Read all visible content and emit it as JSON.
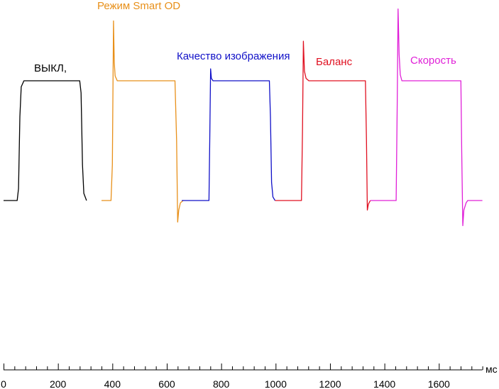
{
  "chart_data": {
    "type": "line",
    "title": "",
    "xlabel": "",
    "ylabel": "",
    "x_unit": "мс",
    "xlim": [
      0,
      1760
    ],
    "x_ticks": [
      0,
      200,
      400,
      600,
      800,
      1000,
      1200,
      1400,
      1600
    ],
    "x_minor_step": 40,
    "y_axis_visible": false,
    "grid": false,
    "series": [
      {
        "name": "ВЫКЛ,",
        "color": "#000000",
        "points": [
          [
            0,
            0
          ],
          [
            50,
            0
          ],
          [
            55,
            0.1
          ],
          [
            60,
            0.7
          ],
          [
            65,
            0.95
          ],
          [
            75,
            1
          ],
          [
            280,
            1
          ],
          [
            285,
            0.9
          ],
          [
            290,
            0.3
          ],
          [
            295,
            0.06
          ],
          [
            305,
            0
          ]
        ]
      },
      {
        "name": "Режим Smart OD",
        "color": "#e8901a",
        "points": [
          [
            360,
            0
          ],
          [
            395,
            0
          ],
          [
            400,
            0.3
          ],
          [
            404,
            1.5
          ],
          [
            407,
            1.15
          ],
          [
            410,
            1.04
          ],
          [
            418,
            1
          ],
          [
            630,
            1
          ],
          [
            636,
            0.5
          ],
          [
            640,
            -0.18
          ],
          [
            644,
            -0.08
          ],
          [
            650,
            -0.02
          ],
          [
            660,
            0
          ]
        ]
      },
      {
        "name": "Качество изображения",
        "color": "#1010c8",
        "points": [
          [
            655,
            0
          ],
          [
            755,
            0
          ],
          [
            758,
            0.5
          ],
          [
            761,
            1.1
          ],
          [
            764,
            1.02
          ],
          [
            770,
            1
          ],
          [
            977,
            1
          ],
          [
            981,
            0.7
          ],
          [
            985,
            0.15
          ],
          [
            990,
            0.03
          ],
          [
            998,
            0
          ]
        ]
      },
      {
        "name": "Баланс",
        "color": "#e01020",
        "points": [
          [
            998,
            0
          ],
          [
            1095,
            0
          ],
          [
            1099,
            0.6
          ],
          [
            1102,
            1.33
          ],
          [
            1106,
            1.08
          ],
          [
            1112,
            1.02
          ],
          [
            1122,
            1
          ],
          [
            1330,
            1
          ],
          [
            1334,
            0.5
          ],
          [
            1337,
            -0.08
          ],
          [
            1341,
            -0.03
          ],
          [
            1348,
            0
          ]
        ]
      },
      {
        "name": "Скорость",
        "color": "#e020d8",
        "points": [
          [
            1348,
            0
          ],
          [
            1443,
            0
          ],
          [
            1447,
            0.8
          ],
          [
            1450,
            1.6
          ],
          [
            1454,
            1.22
          ],
          [
            1458,
            1.05
          ],
          [
            1464,
            1
          ],
          [
            1681,
            1
          ],
          [
            1684,
            0.4
          ],
          [
            1688,
            -0.21
          ],
          [
            1692,
            -0.08
          ],
          [
            1700,
            -0.02
          ],
          [
            1706,
            0
          ],
          [
            1760,
            0
          ]
        ]
      }
    ]
  }
}
